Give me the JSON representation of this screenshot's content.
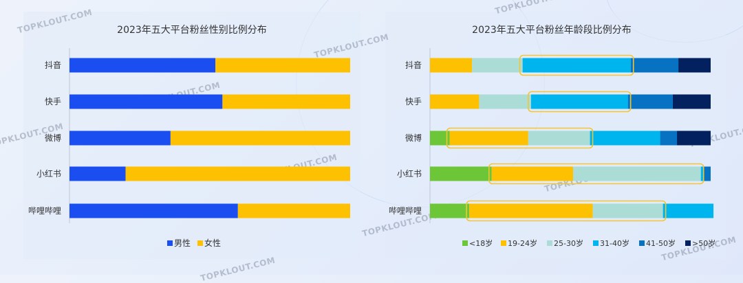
{
  "watermark_text": "TOPKLOUT.COM",
  "colors": {
    "male": "#1b4ef0",
    "female": "#fec101",
    "age_lt18": "#6cc637",
    "age_19_24": "#fec101",
    "age_25_30": "#acdcd6",
    "age_31_40": "#00b4ee",
    "age_41_50": "#0872c2",
    "age_gt50": "#02215e",
    "highlight": "#f5c530"
  },
  "chart_data": [
    {
      "type": "bar",
      "orientation": "horizontal",
      "stacked": true,
      "title": "2023年五大平台粉丝性别比例分布",
      "categories": [
        "抖音",
        "快手",
        "微博",
        "小红书",
        "哔哩哔哩"
      ],
      "series": [
        {
          "name": "男性",
          "values": [
            52,
            54.5,
            36,
            20,
            60
          ]
        },
        {
          "name": "女性",
          "values": [
            48,
            45.5,
            64,
            80,
            40
          ]
        }
      ],
      "legend_position": "bottom",
      "grid": false
    },
    {
      "type": "bar",
      "orientation": "horizontal",
      "stacked": true,
      "title": "2023年五大平台粉丝年龄段比例分布",
      "categories": [
        "抖音",
        "快手",
        "微博",
        "小红书",
        "哔哩哔哩"
      ],
      "series": [
        {
          "name": "<18岁",
          "values": [
            0,
            0,
            7,
            22,
            14
          ]
        },
        {
          "name": "19-24岁",
          "values": [
            15,
            17.5,
            28,
            29,
            44
          ]
        },
        {
          "name": "25-30岁",
          "values": [
            18,
            18.5,
            22,
            45.5,
            25
          ]
        },
        {
          "name": "31-40岁",
          "values": [
            38.5,
            34.5,
            25,
            1,
            18
          ]
        },
        {
          "name": "41-50岁",
          "values": [
            17,
            16,
            6,
            2.5,
            0
          ]
        },
        {
          "name": ">50岁",
          "values": [
            11.5,
            13.5,
            12,
            0,
            0
          ]
        }
      ],
      "highlights": [
        {
          "category": "抖音",
          "series": "31-40岁"
        },
        {
          "category": "快手",
          "series": "31-40岁"
        },
        {
          "category": "微博",
          "series": [
            "19-24岁",
            "25-30岁"
          ]
        },
        {
          "category": "小红书",
          "series": [
            "19-24岁",
            "25-30岁"
          ]
        },
        {
          "category": "哔哩哔哩",
          "series": [
            "19-24岁",
            "25-30岁"
          ]
        }
      ],
      "legend_position": "bottom",
      "grid": false
    }
  ]
}
